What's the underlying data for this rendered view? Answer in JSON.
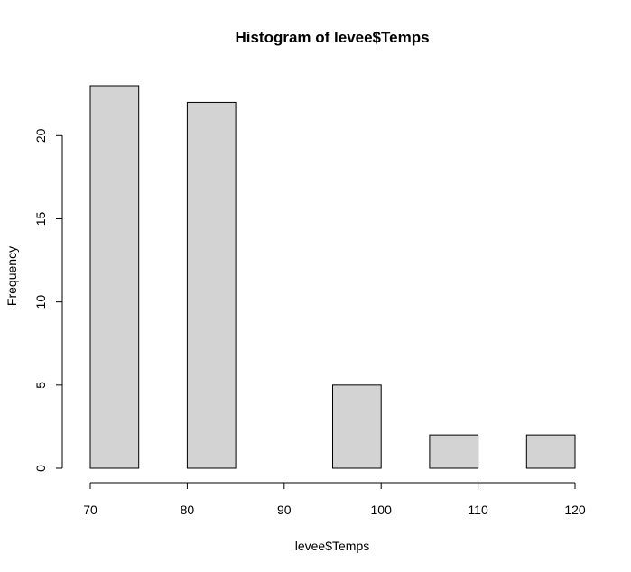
{
  "chart_data": {
    "type": "bar",
    "title": "Histogram of levee$Temps",
    "xlabel": "levee$Temps",
    "ylabel": "Frequency",
    "bins": [
      {
        "start": 70,
        "end": 75,
        "count": 23
      },
      {
        "start": 75,
        "end": 80,
        "count": 0
      },
      {
        "start": 80,
        "end": 85,
        "count": 22
      },
      {
        "start": 85,
        "end": 90,
        "count": 0
      },
      {
        "start": 90,
        "end": 95,
        "count": 0
      },
      {
        "start": 95,
        "end": 100,
        "count": 5
      },
      {
        "start": 100,
        "end": 105,
        "count": 0
      },
      {
        "start": 105,
        "end": 110,
        "count": 2
      },
      {
        "start": 110,
        "end": 115,
        "count": 0
      },
      {
        "start": 115,
        "end": 120,
        "count": 2
      }
    ],
    "xlim": [
      70,
      120
    ],
    "ylim": [
      0,
      23
    ],
    "x_ticks": [
      "70",
      "80",
      "90",
      "100",
      "110",
      "120"
    ],
    "y_ticks": [
      "0",
      "5",
      "10",
      "15",
      "20"
    ],
    "bar_color": "#d3d3d3",
    "grid": false
  }
}
